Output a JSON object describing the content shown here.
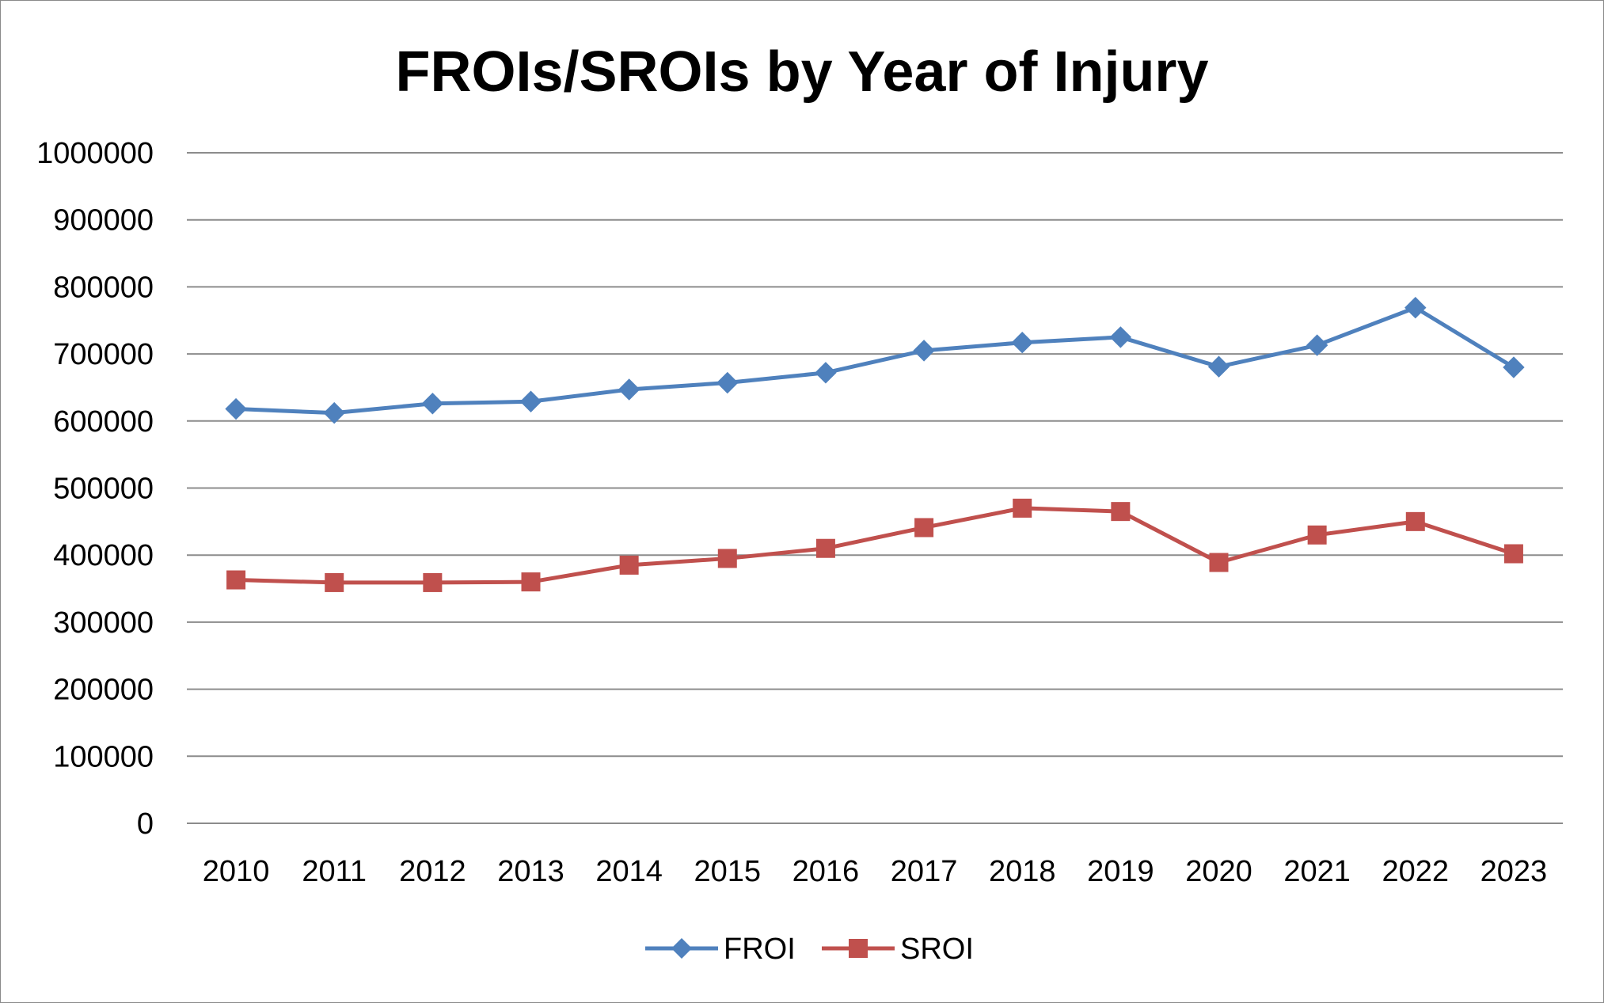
{
  "chart_data": {
    "type": "line",
    "title": "FROIs/SROIs by Year of Injury",
    "xlabel": "",
    "ylabel": "",
    "categories": [
      "2010",
      "2011",
      "2012",
      "2013",
      "2014",
      "2015",
      "2016",
      "2017",
      "2018",
      "2019",
      "2020",
      "2021",
      "2022",
      "2023"
    ],
    "ylim": [
      0,
      1000000
    ],
    "yticks": [
      "0",
      "100000",
      "200000",
      "300000",
      "400000",
      "500000",
      "600000",
      "700000",
      "800000",
      "900000",
      "1000000"
    ],
    "grid": true,
    "legend_position": "bottom",
    "series": [
      {
        "name": "FROI",
        "color": "#4F81BD",
        "marker": "diamond",
        "values": [
          618000,
          612000,
          626000,
          629000,
          647000,
          657000,
          672000,
          705000,
          717000,
          725000,
          681000,
          713000,
          769000,
          680000
        ]
      },
      {
        "name": "SROI",
        "color": "#C0504D",
        "marker": "square",
        "values": [
          363000,
          359000,
          359000,
          360000,
          385000,
          395000,
          410000,
          441000,
          470000,
          465000,
          389000,
          430000,
          450000,
          402000
        ]
      }
    ]
  }
}
